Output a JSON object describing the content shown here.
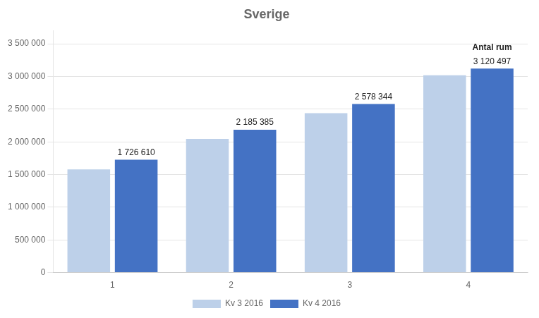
{
  "chart_data": {
    "type": "bar",
    "title": "Sverige",
    "categories": [
      "1",
      "2",
      "3",
      "4"
    ],
    "series": [
      {
        "name": "Kv 3 2016",
        "color": "#bdd0e9",
        "values": [
          1580000,
          2045000,
          2440000,
          3020000
        ]
      },
      {
        "name": "Kv 4 2016",
        "color": "#4472c4",
        "values": [
          1726610,
          2185385,
          2578344,
          3120497
        ],
        "data_labels": true,
        "value_labels": [
          "1 726 610",
          "2 185 385",
          "2 578 344",
          "3 120 497"
        ]
      }
    ],
    "annotation": "Antal rum",
    "ylim": [
      0,
      3700000
    ],
    "yticks": [
      0,
      {
        "value": 500000,
        "label": "500 000"
      },
      {
        "value": 1000000,
        "label": "1 000 000"
      },
      {
        "value": 1500000,
        "label": "1 500 000"
      },
      {
        "value": 2000000,
        "label": "2 000 000"
      },
      {
        "value": 2500000,
        "label": "2 500 000"
      },
      {
        "value": 3000000,
        "label": "3 000 000"
      },
      {
        "value": 3500000,
        "label": "3 500 000"
      }
    ],
    "grid": true,
    "legend": "bottom"
  }
}
